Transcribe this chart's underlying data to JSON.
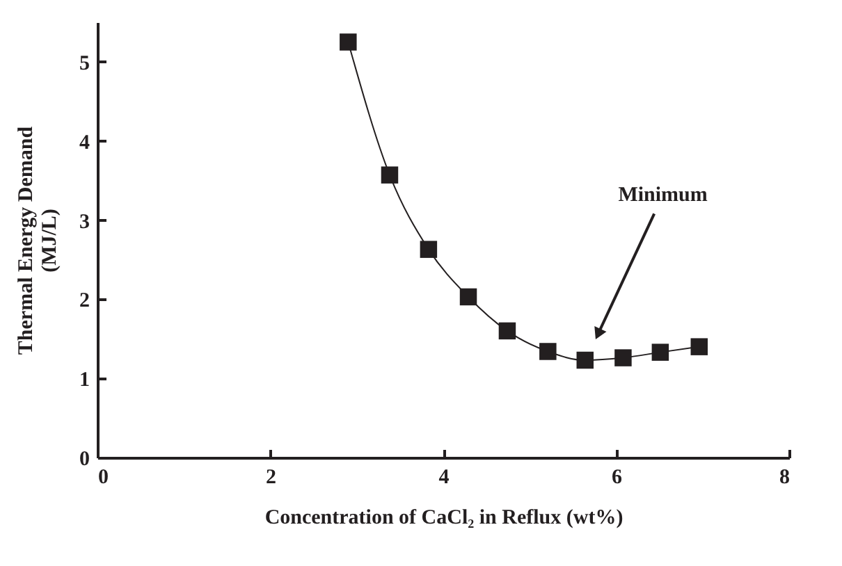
{
  "chart_data": {
    "type": "line",
    "xlabel": "Concentration of CaCl₂ in Reflux (wt%)",
    "ylabel": "Thermal Energy Demand (MJ/L)",
    "x": [
      2.9,
      3.38,
      3.83,
      4.29,
      4.74,
      5.21,
      5.64,
      6.08,
      6.51,
      6.96
    ],
    "series": [
      {
        "color": "#231f20",
        "values": [
          5.25,
          3.57,
          2.63,
          2.03,
          1.6,
          1.34,
          1.23,
          1.26,
          1.33,
          1.4
        ]
      }
    ],
    "xlim": [
      0,
      8
    ],
    "xticks": [
      0,
      2,
      4,
      6,
      8
    ],
    "ylim": [
      0,
      5.5
    ],
    "yticks": [
      0,
      1,
      2,
      3,
      4,
      5
    ],
    "marker": "square",
    "line_style": "solid",
    "annotations": [
      {
        "text": "Minimum",
        "x": 5.79,
        "y": 1.56
      }
    ]
  }
}
